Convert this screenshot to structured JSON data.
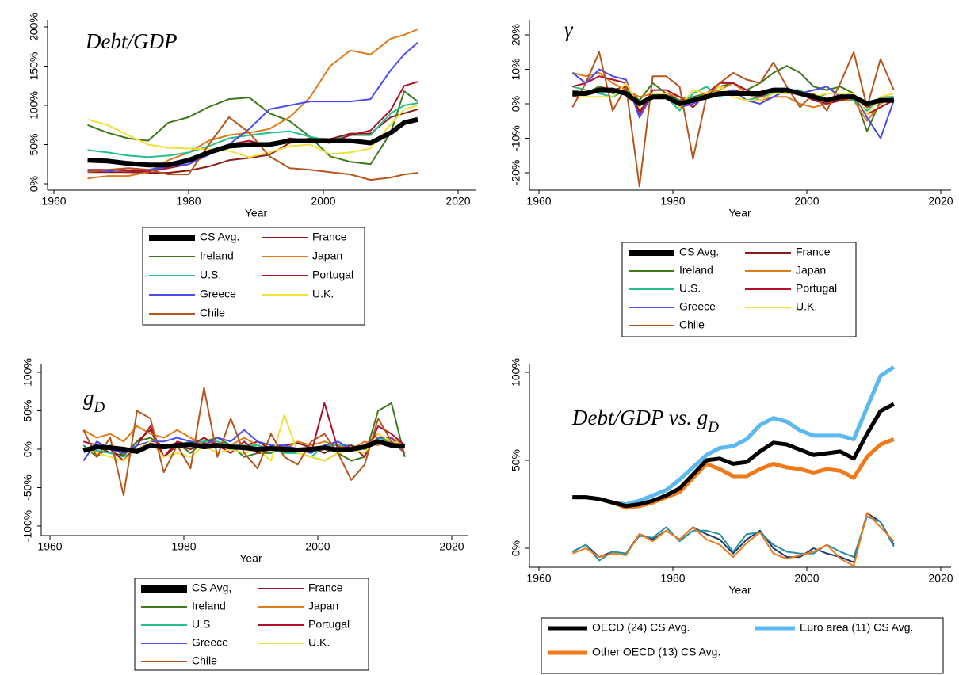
{
  "chart_data": [
    {
      "type": "line",
      "title": {
        "text": "Debt/GDP"
      },
      "x_label": "Year",
      "x": [
        1965,
        1968,
        1971,
        1974,
        1977,
        1980,
        1983,
        1986,
        1989,
        1992,
        1995,
        1998,
        2001,
        2004,
        2007,
        2010,
        2012,
        2014
      ],
      "xlim": [
        1960,
        2020
      ],
      "xticks": [
        1960,
        1980,
        2000,
        2020
      ],
      "ylim": [
        0,
        200
      ],
      "yticks": [
        {
          "value": 0,
          "label": "0%"
        },
        {
          "value": 50,
          "label": "50%"
        },
        {
          "value": 100,
          "label": "100%"
        },
        {
          "value": 150,
          "label": "150%"
        },
        {
          "value": 200,
          "label": "200%"
        }
      ],
      "series": [
        {
          "name": "CS Avg.",
          "color": "#000000",
          "values": [
            30,
            29,
            26,
            24,
            24,
            30,
            40,
            48,
            50,
            50,
            55,
            55,
            55,
            55,
            52,
            65,
            78,
            82
          ]
        },
        {
          "name": "France",
          "color": "#8b1a1a",
          "values": [
            15,
            15,
            15,
            14,
            14,
            17,
            22,
            30,
            33,
            37,
            52,
            58,
            57,
            64,
            64,
            85,
            90,
            95
          ]
        },
        {
          "name": "Ireland",
          "color": "#3d7a1a",
          "values": [
            75,
            65,
            58,
            55,
            78,
            85,
            98,
            108,
            110,
            90,
            80,
            60,
            35,
            28,
            25,
            65,
            118,
            105
          ]
        },
        {
          "name": "Japan",
          "color": "#e07b1a",
          "values": [
            7,
            10,
            10,
            15,
            30,
            40,
            55,
            62,
            65,
            70,
            85,
            110,
            150,
            170,
            165,
            185,
            190,
            197
          ]
        },
        {
          "name": "U.S.",
          "color": "#22c08c",
          "values": [
            43,
            40,
            36,
            34,
            36,
            40,
            48,
            58,
            62,
            65,
            67,
            60,
            55,
            62,
            62,
            90,
            100,
            103
          ]
        },
        {
          "name": "Portugal",
          "color": "#b0102a",
          "values": [
            18,
            18,
            17,
            16,
            20,
            25,
            40,
            50,
            55,
            48,
            58,
            55,
            52,
            62,
            68,
            94,
            125,
            130
          ]
        },
        {
          "name": "Greece",
          "color": "#4b4bf0",
          "values": [
            17,
            16,
            20,
            18,
            22,
            25,
            37,
            50,
            70,
            95,
            100,
            105,
            105,
            105,
            108,
            145,
            165,
            180
          ]
        },
        {
          "name": "U.K.",
          "color": "#f2e03a",
          "values": [
            82,
            75,
            62,
            50,
            46,
            45,
            44,
            42,
            34,
            40,
            48,
            50,
            38,
            40,
            45,
            76,
            95,
            100
          ]
        },
        {
          "name": "Chile",
          "color": "#b5561c",
          "values": [
            15,
            18,
            20,
            18,
            12,
            12,
            50,
            85,
            65,
            35,
            20,
            18,
            15,
            12,
            5,
            8,
            12,
            14
          ]
        }
      ]
    },
    {
      "type": "line",
      "title": {
        "text": "γ"
      },
      "x_label": "Year",
      "x": [
        1965,
        1967,
        1969,
        1971,
        1973,
        1975,
        1977,
        1979,
        1981,
        1983,
        1985,
        1987,
        1989,
        1991,
        1993,
        1995,
        1997,
        1999,
        2001,
        2003,
        2005,
        2007,
        2009,
        2011,
        2013
      ],
      "xlim": [
        1960,
        2020
      ],
      "xticks": [
        1960,
        1980,
        2000,
        2020
      ],
      "ylim": [
        -20,
        20
      ],
      "yticks": [
        {
          "value": -20,
          "label": "-20%"
        },
        {
          "value": -10,
          "label": "-10%"
        },
        {
          "value": 0,
          "label": "0%"
        },
        {
          "value": 10,
          "label": "10%"
        },
        {
          "value": 20,
          "label": "20%"
        }
      ],
      "series": [
        {
          "name": "CS Avg.",
          "color": "#000000",
          "values": [
            3,
            3,
            4,
            4,
            3,
            0,
            2,
            2,
            0,
            1,
            2,
            3,
            3,
            3,
            3,
            4,
            4,
            3,
            2,
            1,
            2,
            2,
            0,
            1,
            1
          ]
        },
        {
          "name": "France",
          "color": "#8b1a1a",
          "values": [
            2,
            3,
            5,
            4,
            5,
            -2,
            2,
            3,
            -1,
            1,
            2,
            3,
            4,
            3,
            2,
            3,
            3,
            3,
            2,
            1,
            1,
            2,
            -1,
            1,
            1
          ]
        },
        {
          "name": "Ireland",
          "color": "#3d7a1a",
          "values": [
            4,
            3,
            5,
            3,
            4,
            1,
            6,
            3,
            1,
            2,
            3,
            5,
            6,
            4,
            6,
            9,
            11,
            9,
            5,
            4,
            5,
            3,
            -8,
            1,
            1
          ]
        },
        {
          "name": "Japan",
          "color": "#e07b1a",
          "values": [
            9,
            8,
            9,
            6,
            4,
            2,
            3,
            3,
            2,
            1,
            3,
            4,
            6,
            3,
            1,
            2,
            2,
            0,
            -1,
            0,
            1,
            1,
            -5,
            0,
            2
          ]
        },
        {
          "name": "U.S.",
          "color": "#22c08c",
          "values": [
            5,
            4,
            3,
            2,
            4,
            0,
            3,
            2,
            -2,
            3,
            5,
            2,
            4,
            1,
            2,
            3,
            4,
            4,
            1,
            3,
            3,
            1,
            -2,
            2,
            2
          ]
        },
        {
          "name": "Portugal",
          "color": "#b0102a",
          "values": [
            5,
            6,
            8,
            7,
            6,
            -3,
            4,
            4,
            2,
            -1,
            3,
            6,
            6,
            4,
            2,
            4,
            4,
            3,
            1,
            0,
            1,
            2,
            -3,
            -1,
            1
          ]
        },
        {
          "name": "Greece",
          "color": "#4b4bf0",
          "values": [
            9,
            6,
            10,
            8,
            7,
            -4,
            3,
            3,
            -1,
            0,
            2,
            3,
            4,
            1,
            0,
            2,
            4,
            3,
            4,
            5,
            2,
            3,
            -4,
            -10,
            1
          ]
        },
        {
          "name": "U.K.",
          "color": "#f2e03a",
          "values": [
            3,
            2,
            2,
            2,
            6,
            -1,
            3,
            3,
            -1,
            4,
            3,
            5,
            2,
            1,
            1,
            3,
            3,
            3,
            2,
            3,
            3,
            3,
            -3,
            2,
            3
          ]
        },
        {
          "name": "Chile",
          "color": "#b5561c",
          "values": [
            -1,
            6,
            15,
            -2,
            5,
            -24,
            8,
            8,
            5,
            -16,
            2,
            6,
            9,
            7,
            6,
            12,
            5,
            -1,
            3,
            -2,
            6,
            15,
            -1,
            13,
            4
          ]
        }
      ]
    },
    {
      "type": "line",
      "title": {
        "text": "g",
        "sub": "D"
      },
      "x_label": "Year",
      "x": [
        1965,
        1967,
        1969,
        1971,
        1973,
        1975,
        1977,
        1979,
        1981,
        1983,
        1985,
        1987,
        1989,
        1991,
        1993,
        1995,
        1997,
        1999,
        2001,
        2003,
        2005,
        2007,
        2009,
        2011,
        2013
      ],
      "xlim": [
        1960,
        2020
      ],
      "xticks": [
        1960,
        1980,
        2000,
        2020
      ],
      "ylim": [
        -100,
        100
      ],
      "yticks": [
        {
          "value": -100,
          "label": "-100%"
        },
        {
          "value": -50,
          "label": "-50%"
        },
        {
          "value": 0,
          "label": "0%"
        },
        {
          "value": 50,
          "label": "50%"
        },
        {
          "value": 100,
          "label": "100%"
        }
      ],
      "series": [
        {
          "name": "CS Avg,",
          "color": "#000000",
          "values": [
            -2,
            3,
            2,
            0,
            -3,
            5,
            3,
            5,
            6,
            3,
            5,
            3,
            2,
            0,
            1,
            0,
            -1,
            0,
            2,
            -1,
            0,
            3,
            10,
            5,
            4
          ]
        },
        {
          "name": "France",
          "color": "#8b1a1a",
          "values": [
            0,
            5,
            -5,
            -8,
            10,
            25,
            -10,
            5,
            0,
            8,
            5,
            3,
            4,
            10,
            0,
            5,
            8,
            2,
            -5,
            3,
            0,
            5,
            20,
            8,
            3
          ]
        },
        {
          "name": "Ireland",
          "color": "#3d7a1a",
          "values": [
            5,
            -10,
            5,
            -8,
            10,
            15,
            3,
            8,
            -5,
            10,
            15,
            5,
            -10,
            -5,
            -5,
            5,
            -5,
            -10,
            -15,
            -5,
            -15,
            -10,
            50,
            60,
            -10
          ]
        },
        {
          "name": "Japan",
          "color": "#e07b1a",
          "values": [
            25,
            15,
            20,
            10,
            30,
            20,
            15,
            25,
            15,
            5,
            10,
            5,
            15,
            5,
            0,
            0,
            10,
            5,
            10,
            5,
            0,
            10,
            5,
            15,
            5
          ]
        },
        {
          "name": "U.S.",
          "color": "#22c08c",
          "values": [
            0,
            -2,
            -5,
            -10,
            0,
            5,
            5,
            5,
            10,
            10,
            10,
            5,
            5,
            5,
            0,
            -5,
            -5,
            -10,
            5,
            5,
            5,
            0,
            15,
            10,
            5
          ]
        },
        {
          "name": "Portugal",
          "color": "#b0102a",
          "values": [
            10,
            5,
            0,
            -15,
            5,
            30,
            -10,
            10,
            5,
            15,
            5,
            -5,
            10,
            -5,
            0,
            5,
            0,
            -5,
            60,
            0,
            5,
            -10,
            30,
            20,
            5
          ]
        },
        {
          "name": "Greece",
          "color": "#4b4bf0",
          "values": [
            -15,
            10,
            0,
            -5,
            5,
            10,
            10,
            15,
            10,
            5,
            15,
            10,
            25,
            10,
            5,
            5,
            0,
            -5,
            5,
            10,
            0,
            5,
            15,
            15,
            -5
          ]
        },
        {
          "name": "U.K.",
          "color": "#f2e03a",
          "values": [
            0,
            -5,
            -10,
            -15,
            0,
            10,
            -10,
            -5,
            -10,
            5,
            -5,
            0,
            -5,
            0,
            -15,
            45,
            -5,
            -10,
            -15,
            -5,
            0,
            -5,
            20,
            10,
            5
          ]
        },
        {
          "name": "Chile",
          "color": "#b5561c",
          "values": [
            25,
            -10,
            15,
            -60,
            50,
            40,
            -30,
            5,
            -25,
            80,
            -10,
            40,
            -5,
            -25,
            20,
            -10,
            -20,
            10,
            20,
            -5,
            -40,
            -20,
            40,
            10,
            -5
          ]
        }
      ]
    },
    {
      "type": "line",
      "title": {
        "text": "Debt/GDP vs. g",
        "sub": "D"
      },
      "x_label": "Year",
      "x": [
        1965,
        1967,
        1969,
        1971,
        1973,
        1975,
        1977,
        1979,
        1981,
        1983,
        1985,
        1987,
        1989,
        1991,
        1993,
        1995,
        1997,
        1999,
        2001,
        2003,
        2005,
        2007,
        2009,
        2011,
        2013
      ],
      "xlim": [
        1960,
        2020
      ],
      "xticks": [
        1960,
        1980,
        2000,
        2020
      ],
      "ylim": [
        0,
        100
      ],
      "yticks": [
        {
          "value": 0,
          "label": "0%"
        },
        {
          "value": 50,
          "label": "50%"
        },
        {
          "value": 100,
          "label": "100%"
        }
      ],
      "series": [
        {
          "name": "OECD (24) CS Avg.",
          "color": "#000000",
          "values": [
            29,
            29,
            28,
            26,
            24,
            25,
            27,
            30,
            34,
            42,
            50,
            51,
            48,
            49,
            55,
            60,
            59,
            56,
            53,
            54,
            55,
            51,
            65,
            78,
            82
          ]
        },
        {
          "name": "Euro area (11) CS Avg.",
          "color": "#5bb8f0",
          "values": [
            29,
            29,
            28,
            26,
            25,
            27,
            30,
            33,
            39,
            46,
            53,
            57,
            58,
            62,
            70,
            74,
            72,
            67,
            64,
            64,
            64,
            62,
            80,
            98,
            103
          ]
        },
        {
          "name": "Other OECD (13) CS Avg.",
          "color": "#f07a1a",
          "values": [
            29,
            29,
            28,
            26,
            23,
            24,
            26,
            29,
            32,
            40,
            48,
            45,
            41,
            41,
            45,
            48,
            46,
            45,
            43,
            45,
            44,
            40,
            52,
            59,
            62
          ]
        }
      ],
      "growth_lines": [
        {
          "color": "#1a3a70",
          "values": [
            -2,
            2,
            -5,
            -2,
            -3,
            8,
            5,
            10,
            5,
            12,
            8,
            5,
            -3,
            5,
            10,
            0,
            -5,
            -5,
            0,
            -3,
            -5,
            -8,
            20,
            15,
            2
          ]
        },
        {
          "color": "#2a90a0",
          "values": [
            -2,
            2,
            -7,
            -2,
            -3,
            7,
            6,
            12,
            4,
            10,
            10,
            8,
            -2,
            8,
            9,
            2,
            -2,
            -3,
            -3,
            2,
            -2,
            -5,
            18,
            15,
            1
          ]
        },
        {
          "color": "#f07a1a",
          "values": [
            -3,
            0,
            -5,
            -3,
            -4,
            8,
            4,
            10,
            5,
            12,
            5,
            2,
            -5,
            3,
            9,
            -3,
            -6,
            -4,
            -2,
            2,
            -6,
            -10,
            20,
            12,
            4
          ]
        }
      ]
    }
  ]
}
